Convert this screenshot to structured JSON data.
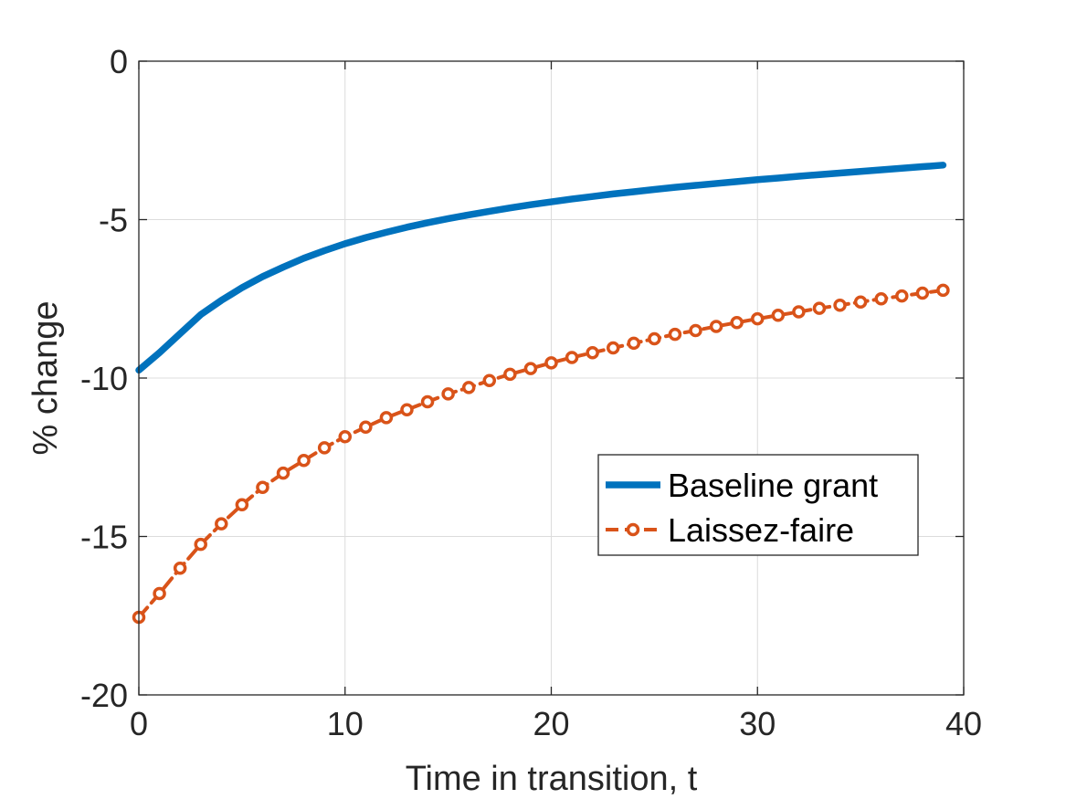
{
  "chart_data": {
    "type": "line",
    "xlabel": "Time in transition, t",
    "ylabel": "% change",
    "xlim": [
      0,
      40
    ],
    "ylim": [
      -20,
      0
    ],
    "xticks": [
      0,
      10,
      20,
      30,
      40
    ],
    "yticks": [
      0,
      -5,
      -10,
      -15,
      -20
    ],
    "xtick_labels": [
      "0",
      "10",
      "20",
      "30",
      "40"
    ],
    "ytick_labels": [
      "0",
      "-5",
      "-10",
      "-15",
      "-20"
    ],
    "grid": true,
    "legend_position": "right",
    "series": [
      {
        "name": "Baseline grant",
        "color": "#0072BD",
        "style": "solid",
        "marker": "none",
        "x": [
          0,
          1,
          2,
          3,
          4,
          5,
          6,
          7,
          8,
          9,
          10,
          11,
          12,
          13,
          14,
          15,
          16,
          17,
          18,
          19,
          20,
          21,
          22,
          23,
          24,
          25,
          26,
          27,
          28,
          29,
          30,
          31,
          32,
          33,
          34,
          35,
          36,
          37,
          38,
          39
        ],
        "y": [
          -9.75,
          -9.2,
          -8.6,
          -8.0,
          -7.55,
          -7.15,
          -6.8,
          -6.5,
          -6.22,
          -5.98,
          -5.76,
          -5.57,
          -5.4,
          -5.24,
          -5.1,
          -4.97,
          -4.85,
          -4.74,
          -4.63,
          -4.53,
          -4.44,
          -4.35,
          -4.27,
          -4.19,
          -4.12,
          -4.05,
          -3.98,
          -3.92,
          -3.86,
          -3.8,
          -3.74,
          -3.69,
          -3.63,
          -3.58,
          -3.53,
          -3.48,
          -3.43,
          -3.38,
          -3.33,
          -3.28
        ]
      },
      {
        "name": "Laissez-faire",
        "color": "#D95319",
        "style": "dashed",
        "marker": "circle",
        "x": [
          0,
          1,
          2,
          3,
          4,
          5,
          6,
          7,
          8,
          9,
          10,
          11,
          12,
          13,
          14,
          15,
          16,
          17,
          18,
          19,
          20,
          21,
          22,
          23,
          24,
          25,
          26,
          27,
          28,
          29,
          30,
          31,
          32,
          33,
          34,
          35,
          36,
          37,
          38,
          39
        ],
        "y": [
          -17.55,
          -16.8,
          -16.0,
          -15.25,
          -14.6,
          -14.0,
          -13.45,
          -13.0,
          -12.6,
          -12.2,
          -11.85,
          -11.55,
          -11.25,
          -11.0,
          -10.75,
          -10.5,
          -10.3,
          -10.08,
          -9.88,
          -9.7,
          -9.52,
          -9.35,
          -9.2,
          -9.05,
          -8.9,
          -8.76,
          -8.62,
          -8.5,
          -8.37,
          -8.25,
          -8.13,
          -8.02,
          -7.91,
          -7.8,
          -7.7,
          -7.6,
          -7.5,
          -7.41,
          -7.32,
          -7.23
        ]
      }
    ]
  }
}
